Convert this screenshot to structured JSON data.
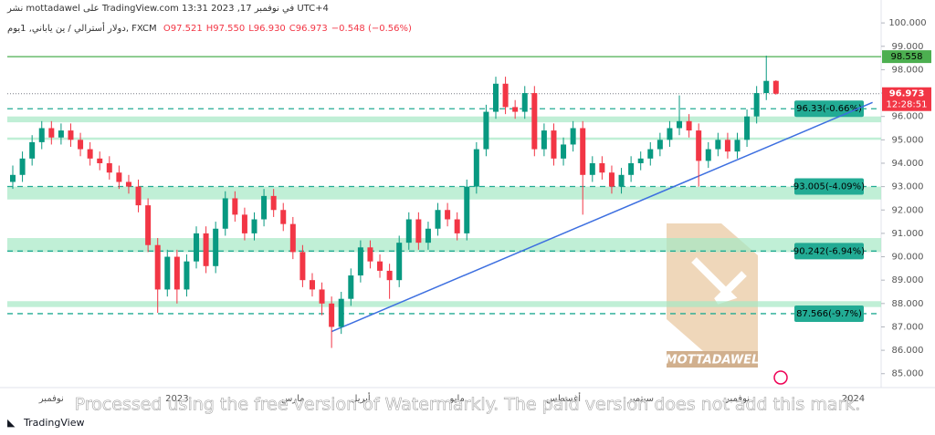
{
  "header": {
    "published": "نشر mottadawel على TradingView.com في نوفمبر 17, 2023 13:31 UTC+4",
    "symbol": "دولار أسترالي / ين ياباني, 1يوم, FXCM",
    "ohlc": [
      "O97.521",
      "H97.550",
      "L96.930",
      "C96.973",
      "−0.548 (−0.56%)"
    ]
  },
  "chart_data": {
    "type": "candlestick",
    "categories": [
      null,
      null,
      null,
      null,
      "نوفمبر",
      null,
      null,
      null,
      null,
      null,
      null,
      null,
      null,
      null,
      null,
      null,
      null,
      "2023",
      null,
      null,
      null,
      null,
      null,
      null,
      null,
      null,
      null,
      null,
      null,
      "مارس",
      null,
      null,
      null,
      null,
      null,
      null,
      "أبريل",
      null,
      null,
      null,
      null,
      null,
      null,
      null,
      null,
      null,
      "مايو",
      null,
      null,
      null,
      null,
      null,
      null,
      null,
      null,
      null,
      null,
      "أغسطس",
      null,
      null,
      null,
      null,
      null,
      null,
      null,
      "سبتمبر",
      null,
      null,
      null,
      null,
      null,
      null,
      null,
      null,
      null,
      "نوفمبر",
      null,
      null,
      null,
      null,
      null,
      null,
      null,
      null,
      null,
      null,
      null,
      "2024",
      null,
      null
    ],
    "open": [
      93.2,
      93.5,
      94.2,
      94.9,
      95.5,
      95.1,
      95.4,
      95.0,
      94.6,
      94.2,
      94.0,
      93.6,
      93.2,
      93.0,
      92.2,
      90.5,
      88.6,
      90.0,
      88.6,
      89.8,
      91.0,
      89.6,
      91.2,
      92.5,
      91.8,
      91.0,
      91.6,
      92.6,
      92.0,
      91.4,
      90.2,
      89.0,
      88.6,
      88.0,
      87.0,
      88.2,
      89.2,
      90.4,
      89.8,
      89.4,
      89.0,
      90.6,
      91.6,
      90.6,
      91.2,
      92.0,
      91.6,
      91.0,
      93.0,
      94.6,
      96.2,
      97.4,
      96.4,
      96.2,
      97.0,
      94.6,
      95.4,
      94.2,
      94.8,
      95.5,
      93.5,
      94.0,
      93.6,
      93.0,
      93.5,
      94.0,
      94.2,
      94.6,
      95.0,
      95.5,
      95.8,
      95.4,
      94.1,
      94.6,
      95.0,
      94.5,
      95.0,
      96.0,
      97.0,
      97.521,
      null,
      null,
      null,
      null,
      null,
      null,
      null,
      null,
      null,
      null
    ],
    "high": [
      93.9,
      94.5,
      95.2,
      95.8,
      95.8,
      95.7,
      95.7,
      95.3,
      94.9,
      94.5,
      94.3,
      93.9,
      93.5,
      93.3,
      92.5,
      90.8,
      90.3,
      90.3,
      90.1,
      91.3,
      91.3,
      91.5,
      92.8,
      92.8,
      92.1,
      91.9,
      92.9,
      92.9,
      92.3,
      91.7,
      90.5,
      89.3,
      88.9,
      88.3,
      88.5,
      89.5,
      90.7,
      90.7,
      90.1,
      89.7,
      90.9,
      91.9,
      91.9,
      91.5,
      92.3,
      92.3,
      91.9,
      93.3,
      94.9,
      96.5,
      97.7,
      97.7,
      96.7,
      97.3,
      97.3,
      95.7,
      95.7,
      95.1,
      95.8,
      95.8,
      94.3,
      94.3,
      93.9,
      93.8,
      94.3,
      94.5,
      94.9,
      95.3,
      95.8,
      96.9,
      96.1,
      95.7,
      94.9,
      95.3,
      95.3,
      95.3,
      96.3,
      97.3,
      98.6,
      97.55,
      null,
      null,
      null,
      null,
      null,
      null,
      null,
      null,
      null,
      null
    ],
    "low": [
      92.9,
      93.2,
      93.9,
      94.6,
      94.8,
      94.8,
      94.7,
      94.3,
      93.9,
      93.7,
      93.3,
      92.9,
      92.7,
      91.9,
      90.2,
      87.6,
      88.3,
      88.0,
      88.3,
      89.5,
      89.3,
      89.3,
      90.9,
      91.5,
      90.7,
      90.7,
      91.3,
      91.7,
      91.1,
      89.9,
      88.7,
      88.3,
      87.5,
      86.1,
      86.7,
      87.9,
      88.9,
      89.5,
      89.1,
      88.2,
      88.7,
      90.3,
      90.3,
      90.3,
      90.9,
      91.3,
      90.7,
      90.7,
      92.7,
      94.3,
      95.9,
      96.1,
      95.9,
      95.9,
      94.3,
      94.3,
      93.9,
      93.9,
      94.5,
      91.8,
      93.2,
      93.3,
      92.7,
      92.7,
      93.2,
      93.7,
      93.9,
      94.3,
      94.7,
      95.2,
      95.1,
      93.0,
      93.8,
      94.3,
      94.2,
      94.2,
      94.7,
      95.7,
      96.7,
      96.93,
      null,
      null,
      null,
      null,
      null,
      null,
      null,
      null,
      null,
      null
    ],
    "close": [
      93.5,
      94.2,
      94.9,
      95.5,
      95.1,
      95.4,
      95.0,
      94.6,
      94.2,
      94.0,
      93.6,
      93.2,
      93.0,
      92.2,
      90.5,
      88.6,
      90.0,
      88.6,
      89.8,
      91.0,
      89.6,
      91.2,
      92.5,
      91.8,
      91.0,
      91.6,
      92.6,
      92.0,
      91.4,
      90.2,
      89.0,
      88.6,
      88.0,
      87.0,
      88.2,
      89.2,
      90.4,
      89.8,
      89.4,
      89.0,
      90.6,
      91.6,
      90.6,
      91.2,
      92.0,
      91.6,
      91.0,
      93.0,
      94.6,
      96.2,
      97.4,
      96.4,
      96.2,
      97.0,
      94.6,
      95.4,
      94.2,
      94.8,
      95.5,
      93.5,
      94.0,
      93.6,
      93.0,
      93.5,
      94.0,
      94.2,
      94.6,
      95.0,
      95.5,
      95.8,
      95.4,
      94.1,
      94.6,
      95.0,
      94.5,
      95.0,
      96.0,
      97.0,
      97.52,
      96.973,
      null,
      null,
      null,
      null,
      null,
      null,
      null,
      null,
      null,
      null
    ],
    "up_color": "#089981",
    "down_color": "#f23645",
    "ylim": [
      84.6,
      100.2
    ],
    "yticks": [
      {
        "value": 85,
        "label": "85.000"
      },
      {
        "value": 86,
        "label": "86.000"
      },
      {
        "value": 87,
        "label": "87.000"
      },
      {
        "value": 88,
        "label": "88.000"
      },
      {
        "value": 89,
        "label": "89.000"
      },
      {
        "value": 90,
        "label": "90.000"
      },
      {
        "value": 91,
        "label": "91.000"
      },
      {
        "value": 92,
        "label": "92.000"
      },
      {
        "value": 93,
        "label": "93.000"
      },
      {
        "value": 94,
        "label": "94.000"
      },
      {
        "value": 95,
        "label": "95.000"
      },
      {
        "value": 96,
        "label": "96.000"
      },
      {
        "value": 97,
        "label": "97.000"
      },
      {
        "value": 98,
        "label": "98.000"
      },
      {
        "value": 99,
        "label": "99.000"
      },
      {
        "value": 100,
        "label": "100.000"
      }
    ],
    "zones": [
      [
        96.0,
        95.75
      ],
      [
        95.1,
        95.0
      ],
      [
        93.0,
        92.45
      ],
      [
        90.8,
        90.2
      ],
      [
        88.1,
        87.85
      ]
    ],
    "zone_color": "#a5e8c4",
    "resistance": {
      "value": 98.558,
      "label": "98.558",
      "color": "#4caf50"
    },
    "last_price": {
      "value": 96.973,
      "label": "96.973",
      "countdown": "12:28:51"
    },
    "levels": [
      {
        "value": 96.33,
        "label": "96.33(-0.66%)"
      },
      {
        "value": 93.005,
        "label": "93.005(-4.09%)"
      },
      {
        "value": 90.242,
        "label": "90.242(-6.94%)"
      },
      {
        "value": 87.566,
        "label": "87.566(-9.7%)"
      }
    ],
    "level_color": "#22ab94",
    "trendline": {
      "from": [
        33,
        86.8
      ],
      "to": [
        89,
        96.6
      ],
      "color": "#3d6fe0"
    }
  },
  "watermark_brand": "MOTTADAWEL",
  "watermark_notice": "Processed using the free version of Watermarkly. The paid version does not add this mark.",
  "footer": "TradingView"
}
